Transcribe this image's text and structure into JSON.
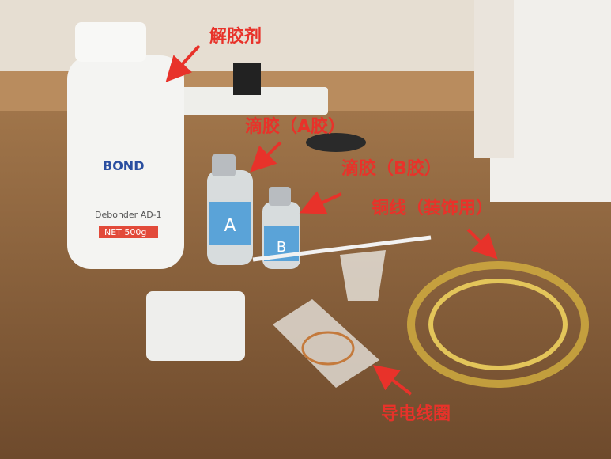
{
  "annotations": [
    {
      "label": "解胶剂"
    },
    {
      "label": "滴胶（A胶）"
    },
    {
      "label": "滴胶（B胶）"
    },
    {
      "label": "铜线（装饰用）"
    },
    {
      "label": "导电线圈"
    }
  ],
  "product_text": {
    "brand": "BOND",
    "product": "Debonder AD-1",
    "net": "NET 500g",
    "bottle_a": "A",
    "bottle_b": "B"
  }
}
